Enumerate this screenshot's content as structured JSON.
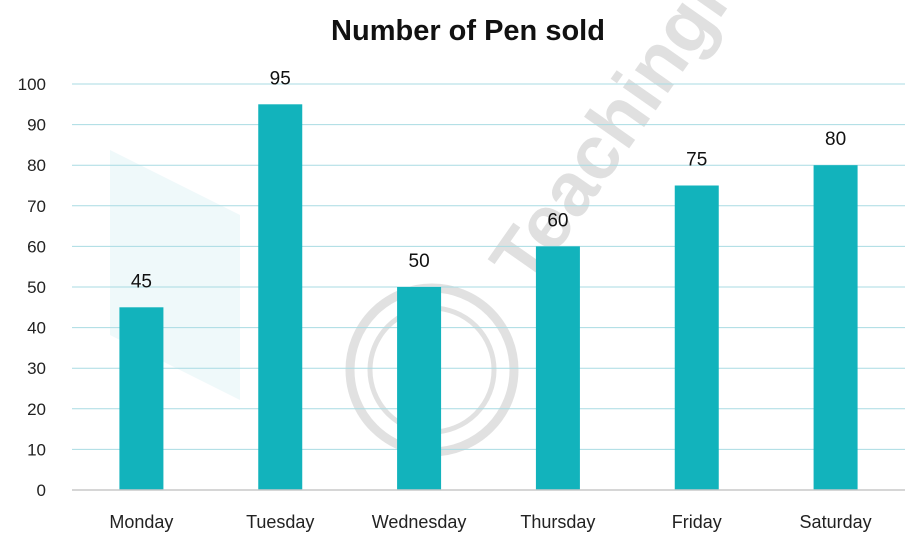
{
  "chart_data": {
    "type": "bar",
    "title": "Number of Pen sold",
    "categories": [
      "Monday",
      "Tuesday",
      "Wednesday",
      "Thursday",
      "Friday",
      "Saturday"
    ],
    "values": [
      45,
      95,
      50,
      60,
      75,
      80
    ],
    "ylim": [
      0,
      100
    ],
    "yticks": [
      0,
      10,
      20,
      30,
      40,
      50,
      60,
      70,
      80,
      90,
      100
    ],
    "data_labels": true,
    "grid": true,
    "legend": "none",
    "bar_color": "#12b3bc"
  },
  "watermark": {
    "text": "Teachingli"
  }
}
